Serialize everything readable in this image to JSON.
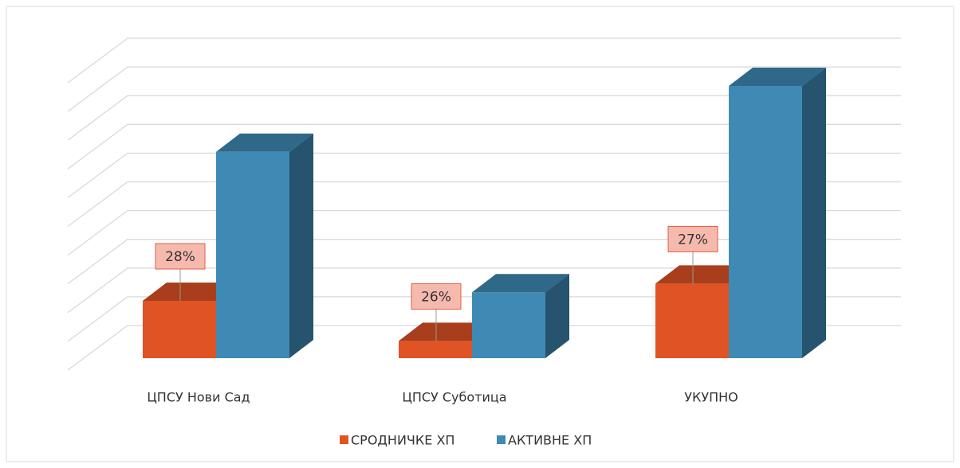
{
  "chart_data": {
    "type": "bar3d",
    "categories": [
      "ЦПСУ Нови Сад",
      "ЦПСУ Суботица",
      "УКУПНО"
    ],
    "series": [
      {
        "name": "СРОДНИЧКЕ ХП",
        "color": "#e05325",
        "values": [
          2.0,
          0.6,
          2.6
        ]
      },
      {
        "name": "АКТИВНЕ ХП",
        "color": "#3f8ab5",
        "values": [
          7.2,
          2.3,
          9.5
        ]
      }
    ],
    "share_labels": [
      "28%",
      "26%",
      "27%"
    ],
    "ylim": [
      0,
      10
    ],
    "yticks": [
      0,
      1,
      2,
      3,
      4,
      5,
      6,
      7,
      8,
      9,
      10
    ],
    "grid": true,
    "legend": "bottom"
  }
}
